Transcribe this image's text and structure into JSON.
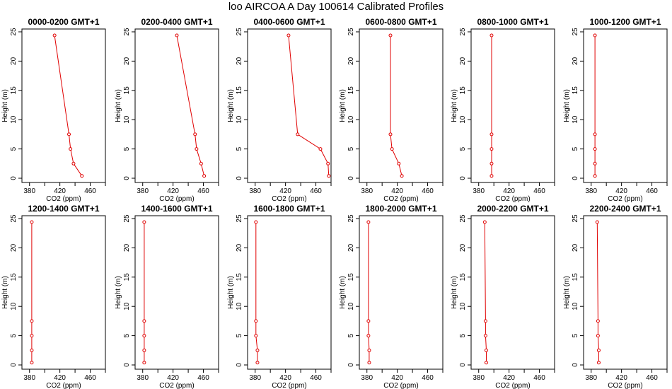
{
  "title": "loo AIRCOA A  Day 100614  Calibrated Profiles",
  "colors": {
    "line": "#e00000",
    "axis": "#000000",
    "background": "#ffffff"
  },
  "chart_data": [
    {
      "type": "line",
      "title": "0000-0200 GMT+1",
      "xlabel": "CO2 (ppm)",
      "ylabel": "Height (m)",
      "xlim": [
        370,
        480
      ],
      "ylim": [
        0,
        25
      ],
      "xticks": [
        380,
        420,
        460
      ],
      "xtick_labels": [
        "380",
        "420",
        "460"
      ],
      "yticks": [
        0,
        5,
        10,
        15,
        20,
        25
      ],
      "ytick_labels": [
        "0",
        "5",
        "10",
        "15",
        "20",
        "25"
      ],
      "series": [
        {
          "points": [
            [
              449,
              0.4
            ],
            [
              438,
              2.5
            ],
            [
              434,
              5.0
            ],
            [
              432,
              7.5
            ],
            [
              413,
              24.4
            ]
          ]
        }
      ]
    },
    {
      "type": "line",
      "title": "0200-0400 GMT+1",
      "xlabel": "CO2 (ppm)",
      "ylabel": "Height (m)",
      "xlim": [
        370,
        480
      ],
      "ylim": [
        0,
        25
      ],
      "xticks": [
        380,
        420,
        460
      ],
      "xtick_labels": [
        "380",
        "420",
        "460"
      ],
      "yticks": [
        0,
        5,
        10,
        15,
        20,
        25
      ],
      "ytick_labels": [
        "0",
        "5",
        "10",
        "15",
        "20",
        "25"
      ],
      "series": [
        {
          "points": [
            [
              461,
              0.4
            ],
            [
              457,
              2.5
            ],
            [
              451,
              5.0
            ],
            [
              449,
              7.5
            ],
            [
              425,
              24.4
            ]
          ]
        }
      ]
    },
    {
      "type": "line",
      "title": "0400-0600 GMT+1",
      "xlabel": "CO2 (ppm)",
      "ylabel": "Height (m)",
      "xlim": [
        370,
        480
      ],
      "ylim": [
        0,
        25
      ],
      "xticks": [
        380,
        420,
        460
      ],
      "xtick_labels": [
        "380",
        "420",
        "460"
      ],
      "yticks": [
        0,
        5,
        10,
        15,
        20,
        25
      ],
      "ytick_labels": [
        "0",
        "5",
        "10",
        "15",
        "20",
        "25"
      ],
      "series": [
        {
          "points": [
            [
              477,
              0.4
            ],
            [
              476,
              2.5
            ],
            [
              466,
              5.0
            ],
            [
              436,
              7.5
            ],
            [
              424,
              24.4
            ]
          ]
        }
      ]
    },
    {
      "type": "line",
      "title": "0600-0800 GMT+1",
      "xlabel": "CO2 (ppm)",
      "ylabel": "Height (m)",
      "xlim": [
        370,
        480
      ],
      "ylim": [
        0,
        25
      ],
      "xticks": [
        380,
        420,
        460
      ],
      "xtick_labels": [
        "380",
        "420",
        "460"
      ],
      "yticks": [
        0,
        5,
        10,
        15,
        20,
        25
      ],
      "ytick_labels": [
        "0",
        "5",
        "10",
        "15",
        "20",
        "25"
      ],
      "series": [
        {
          "points": [
            [
              426,
              0.4
            ],
            [
              422,
              2.5
            ],
            [
              413,
              5.0
            ],
            [
              411,
              7.5
            ],
            [
              411,
              24.4
            ]
          ]
        }
      ]
    },
    {
      "type": "line",
      "title": "0800-1000 GMT+1",
      "xlabel": "CO2 (ppm)",
      "ylabel": "Height (m)",
      "xlim": [
        370,
        480
      ],
      "ylim": [
        0,
        25
      ],
      "xticks": [
        380,
        420,
        460
      ],
      "xtick_labels": [
        "380",
        "420",
        "460"
      ],
      "yticks": [
        0,
        5,
        10,
        15,
        20,
        25
      ],
      "ytick_labels": [
        "0",
        "5",
        "10",
        "15",
        "20",
        "25"
      ],
      "series": [
        {
          "points": [
            [
              397,
              0.4
            ],
            [
              397,
              2.5
            ],
            [
              397,
              5.0
            ],
            [
              397,
              7.5
            ],
            [
              397,
              24.4
            ]
          ]
        }
      ]
    },
    {
      "type": "line",
      "title": "1000-1200 GMT+1",
      "xlabel": "CO2 (ppm)",
      "ylabel": "Height (m)",
      "xlim": [
        370,
        480
      ],
      "ylim": [
        0,
        25
      ],
      "xticks": [
        380,
        420,
        460
      ],
      "xtick_labels": [
        "380",
        "420",
        "460"
      ],
      "yticks": [
        0,
        5,
        10,
        15,
        20,
        25
      ],
      "ytick_labels": [
        "0",
        "5",
        "10",
        "15",
        "20",
        "25"
      ],
      "series": [
        {
          "points": [
            [
              385,
              0.4
            ],
            [
              385,
              2.5
            ],
            [
              385,
              5.0
            ],
            [
              385,
              7.5
            ],
            [
              385,
              24.4
            ]
          ]
        }
      ]
    },
    {
      "type": "line",
      "title": "1200-1400 GMT+1",
      "xlabel": "CO2 (ppm)",
      "ylabel": "Height (m)",
      "xlim": [
        370,
        480
      ],
      "ylim": [
        0,
        25
      ],
      "xticks": [
        380,
        420,
        460
      ],
      "xtick_labels": [
        "380",
        "420",
        "460"
      ],
      "yticks": [
        0,
        5,
        10,
        15,
        20,
        25
      ],
      "ytick_labels": [
        "0",
        "5",
        "10",
        "15",
        "20",
        "25"
      ],
      "series": [
        {
          "points": [
            [
              383,
              0.4
            ],
            [
              383,
              2.5
            ],
            [
              383,
              5.0
            ],
            [
              383,
              7.5
            ],
            [
              383,
              24.4
            ]
          ]
        }
      ]
    },
    {
      "type": "line",
      "title": "1400-1600 GMT+1",
      "xlabel": "CO2 (ppm)",
      "ylabel": "Height (m)",
      "xlim": [
        370,
        480
      ],
      "ylim": [
        0,
        25
      ],
      "xticks": [
        380,
        420,
        460
      ],
      "xtick_labels": [
        "380",
        "420",
        "460"
      ],
      "yticks": [
        0,
        5,
        10,
        15,
        20,
        25
      ],
      "ytick_labels": [
        "0",
        "5",
        "10",
        "15",
        "20",
        "25"
      ],
      "series": [
        {
          "points": [
            [
              382,
              0.4
            ],
            [
              382,
              2.5
            ],
            [
              382,
              5.0
            ],
            [
              382,
              7.5
            ],
            [
              382,
              24.4
            ]
          ]
        }
      ]
    },
    {
      "type": "line",
      "title": "1600-1800 GMT+1",
      "xlabel": "CO2 (ppm)",
      "ylabel": "Height (m)",
      "xlim": [
        370,
        480
      ],
      "ylim": [
        0,
        25
      ],
      "xticks": [
        380,
        420,
        460
      ],
      "xtick_labels": [
        "380",
        "420",
        "460"
      ],
      "yticks": [
        0,
        5,
        10,
        15,
        20,
        25
      ],
      "ytick_labels": [
        "0",
        "5",
        "10",
        "15",
        "20",
        "25"
      ],
      "series": [
        {
          "points": [
            [
              383,
              0.4
            ],
            [
              383,
              2.5
            ],
            [
              381,
              5.0
            ],
            [
              381,
              7.5
            ],
            [
              381,
              24.4
            ]
          ]
        }
      ]
    },
    {
      "type": "line",
      "title": "1800-2000 GMT+1",
      "xlabel": "CO2 (ppm)",
      "ylabel": "Height (m)",
      "xlim": [
        370,
        480
      ],
      "ylim": [
        0,
        25
      ],
      "xticks": [
        380,
        420,
        460
      ],
      "xtick_labels": [
        "380",
        "420",
        "460"
      ],
      "yticks": [
        0,
        5,
        10,
        15,
        20,
        25
      ],
      "ytick_labels": [
        "0",
        "5",
        "10",
        "15",
        "20",
        "25"
      ],
      "series": [
        {
          "points": [
            [
              383,
              0.4
            ],
            [
              383,
              2.5
            ],
            [
              382,
              5.0
            ],
            [
              382,
              7.5
            ],
            [
              382,
              24.4
            ]
          ]
        }
      ]
    },
    {
      "type": "line",
      "title": "2000-2200 GMT+1",
      "xlabel": "CO2 (ppm)",
      "ylabel": "Height (m)",
      "xlim": [
        370,
        480
      ],
      "ylim": [
        0,
        25
      ],
      "xticks": [
        380,
        420,
        460
      ],
      "xtick_labels": [
        "380",
        "420",
        "460"
      ],
      "yticks": [
        0,
        5,
        10,
        15,
        20,
        25
      ],
      "ytick_labels": [
        "0",
        "5",
        "10",
        "15",
        "20",
        "25"
      ],
      "series": [
        {
          "points": [
            [
              390,
              0.4
            ],
            [
              390,
              2.5
            ],
            [
              389,
              5.0
            ],
            [
              389,
              7.5
            ],
            [
              388,
              24.4
            ]
          ]
        }
      ]
    },
    {
      "type": "line",
      "title": "2200-2400 GMT+1",
      "xlabel": "CO2 (ppm)",
      "ylabel": "Height (m)",
      "xlim": [
        370,
        480
      ],
      "ylim": [
        0,
        25
      ],
      "xticks": [
        380,
        420,
        460
      ],
      "xtick_labels": [
        "380",
        "420",
        "460"
      ],
      "yticks": [
        0,
        5,
        10,
        15,
        20,
        25
      ],
      "ytick_labels": [
        "0",
        "5",
        "10",
        "15",
        "20",
        "25"
      ],
      "series": [
        {
          "points": [
            [
              390,
              0.4
            ],
            [
              390,
              2.5
            ],
            [
              389,
              5.0
            ],
            [
              389,
              7.5
            ],
            [
              388,
              24.4
            ]
          ]
        }
      ]
    }
  ]
}
